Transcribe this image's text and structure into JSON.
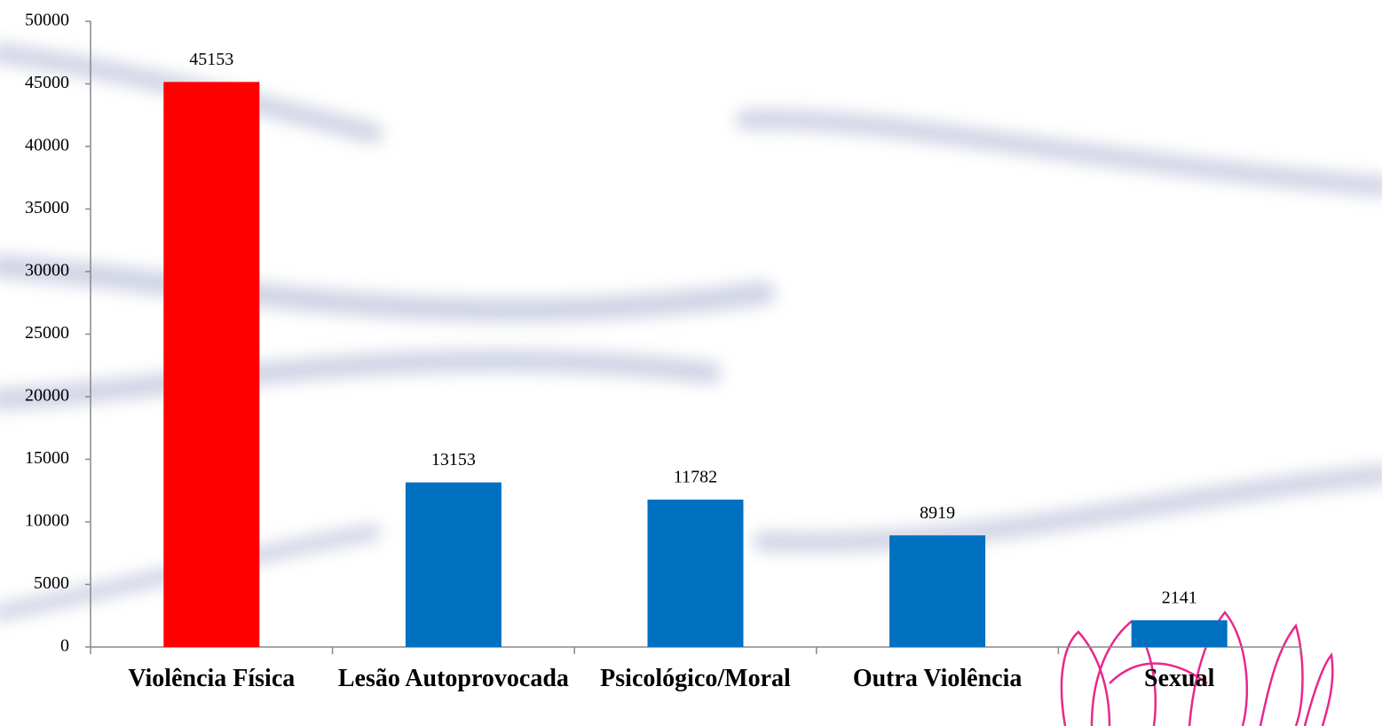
{
  "chart_data": {
    "type": "bar",
    "categories": [
      "Violência Física",
      "Lesão Autoprovocada",
      "Psicológico/Moral",
      "Outra Violência",
      "Sexual"
    ],
    "values": [
      45153,
      13153,
      11782,
      8919,
      2141
    ],
    "colors": [
      "#ff0000",
      "#0070c0",
      "#0070c0",
      "#0070c0",
      "#0070c0"
    ],
    "ylim": [
      0,
      50000
    ],
    "yticks": [
      0,
      5000,
      10000,
      15000,
      20000,
      25000,
      30000,
      35000,
      40000,
      45000,
      50000
    ],
    "grid": false
  }
}
